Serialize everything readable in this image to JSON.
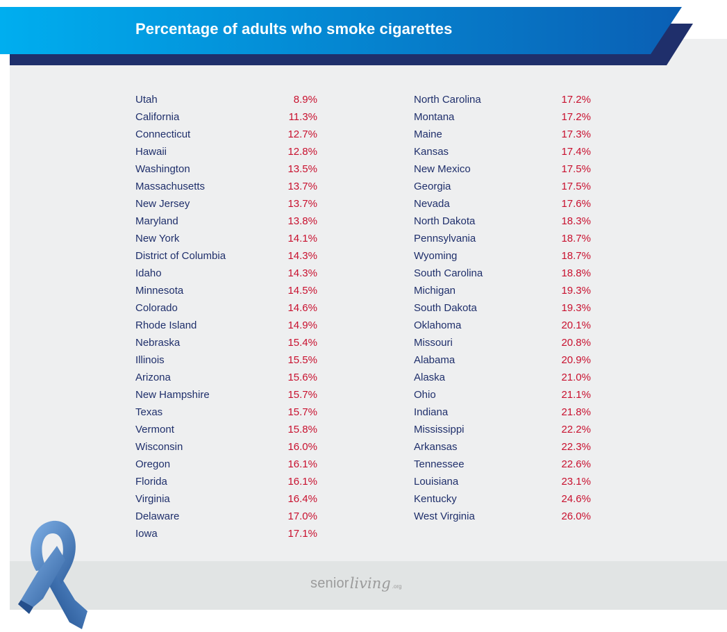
{
  "chart_data": {
    "type": "table",
    "title": "Percentage of adults who smoke cigarettes",
    "columns": [
      [
        {
          "state": "Utah",
          "value": "8.9%"
        },
        {
          "state": "California",
          "value": "11.3%"
        },
        {
          "state": "Connecticut",
          "value": "12.7%"
        },
        {
          "state": "Hawaii",
          "value": "12.8%"
        },
        {
          "state": "Washington",
          "value": "13.5%"
        },
        {
          "state": "Massachusetts",
          "value": "13.7%"
        },
        {
          "state": "New Jersey",
          "value": "13.7%"
        },
        {
          "state": "Maryland",
          "value": "13.8%"
        },
        {
          "state": "New York",
          "value": "14.1%"
        },
        {
          "state": "District of Columbia",
          "value": "14.3%"
        },
        {
          "state": "Idaho",
          "value": "14.3%"
        },
        {
          "state": "Minnesota",
          "value": "14.5%"
        },
        {
          "state": "Colorado",
          "value": "14.6%"
        },
        {
          "state": "Rhode Island",
          "value": "14.9%"
        },
        {
          "state": "Nebraska",
          "value": "15.4%"
        },
        {
          "state": "Illinois",
          "value": "15.5%"
        },
        {
          "state": "Arizona",
          "value": "15.6%"
        },
        {
          "state": "New Hampshire",
          "value": "15.7%"
        },
        {
          "state": "Texas",
          "value": "15.7%"
        },
        {
          "state": "Vermont",
          "value": "15.8%"
        },
        {
          "state": "Wisconsin",
          "value": "16.0%"
        },
        {
          "state": "Oregon",
          "value": "16.1%"
        },
        {
          "state": "Florida",
          "value": "16.1%"
        },
        {
          "state": "Virginia",
          "value": "16.4%"
        },
        {
          "state": "Delaware",
          "value": "17.0%"
        },
        {
          "state": "Iowa",
          "value": "17.1%"
        }
      ],
      [
        {
          "state": "North Carolina",
          "value": "17.2%"
        },
        {
          "state": "Montana",
          "value": "17.2%"
        },
        {
          "state": "Maine",
          "value": "17.3%"
        },
        {
          "state": "Kansas",
          "value": "17.4%"
        },
        {
          "state": "New Mexico",
          "value": "17.5%"
        },
        {
          "state": "Georgia",
          "value": "17.5%"
        },
        {
          "state": "Nevada",
          "value": "17.6%"
        },
        {
          "state": "North Dakota",
          "value": "18.3%"
        },
        {
          "state": "Pennsylvania",
          "value": "18.7%"
        },
        {
          "state": "Wyoming",
          "value": "18.7%"
        },
        {
          "state": "South Carolina",
          "value": "18.8%"
        },
        {
          "state": "Michigan",
          "value": "19.3%"
        },
        {
          "state": "South Dakota",
          "value": "19.3%"
        },
        {
          "state": "Oklahoma",
          "value": "20.1%"
        },
        {
          "state": "Missouri",
          "value": "20.8%"
        },
        {
          "state": "Alabama",
          "value": "20.9%"
        },
        {
          "state": "Alaska",
          "value": "21.0%"
        },
        {
          "state": "Ohio",
          "value": "21.1%"
        },
        {
          "state": "Indiana",
          "value": "21.8%"
        },
        {
          "state": "Mississippi",
          "value": "22.2%"
        },
        {
          "state": "Arkansas",
          "value": "22.3%"
        },
        {
          "state": "Tennessee",
          "value": "22.6%"
        },
        {
          "state": "Louisiana",
          "value": "23.1%"
        },
        {
          "state": "Kentucky",
          "value": "24.6%"
        },
        {
          "state": "West Virginia",
          "value": "26.0%"
        }
      ]
    ]
  },
  "colors": {
    "state_text": "#1f2f6b",
    "value_text": "#c8102e",
    "banner_start": "#00aeef",
    "banner_end": "#0a5fb4",
    "banner_shadow": "#1f2f6b",
    "ribbon": "#4a7fc0"
  },
  "icons": {
    "ribbon": "awareness-ribbon-icon"
  },
  "footer": {
    "logo_senior": "senior",
    "logo_living": "living",
    "logo_org": ".org"
  }
}
